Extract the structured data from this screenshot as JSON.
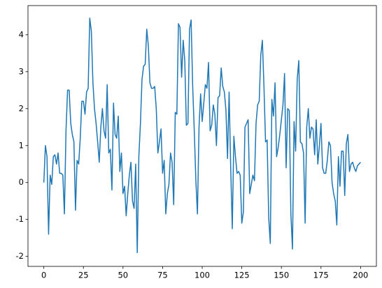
{
  "chart_data": {
    "type": "line",
    "x": [
      0,
      1,
      2,
      3,
      4,
      5,
      6,
      7,
      8,
      9,
      10,
      11,
      12,
      13,
      14,
      15,
      16,
      17,
      18,
      19,
      20,
      21,
      22,
      23,
      24,
      25,
      26,
      27,
      28,
      29,
      30,
      31,
      32,
      33,
      34,
      35,
      36,
      37,
      38,
      39,
      40,
      41,
      42,
      43,
      44,
      45,
      46,
      47,
      48,
      49,
      50,
      51,
      52,
      53,
      54,
      55,
      56,
      57,
      58,
      59,
      60,
      61,
      62,
      63,
      64,
      65,
      66,
      67,
      68,
      69,
      70,
      71,
      72,
      73,
      74,
      75,
      76,
      77,
      78,
      79,
      80,
      81,
      82,
      83,
      84,
      85,
      86,
      87,
      88,
      89,
      90,
      91,
      92,
      93,
      94,
      95,
      96,
      97,
      98,
      99,
      100,
      101,
      102,
      103,
      104,
      105,
      106,
      107,
      108,
      109,
      110,
      111,
      112,
      113,
      114,
      115,
      116,
      117,
      118,
      119,
      120,
      121,
      122,
      123,
      124,
      125,
      126,
      127,
      128,
      129,
      130,
      131,
      132,
      133,
      134,
      135,
      136,
      137,
      138,
      139,
      140,
      141,
      142,
      143,
      144,
      145,
      146,
      147,
      148,
      149,
      150,
      151,
      152,
      153,
      154,
      155,
      156,
      157,
      158,
      159,
      160,
      161,
      162,
      163,
      164,
      165,
      166,
      167,
      168,
      169,
      170,
      171,
      172,
      173,
      174,
      175,
      176,
      177,
      178,
      179,
      180,
      181,
      182,
      183,
      184,
      185,
      186,
      187,
      188,
      189,
      190,
      191,
      192,
      193,
      194,
      195,
      196,
      197,
      198,
      199,
      200
    ],
    "series": [
      {
        "color": "#1f77b4",
        "values": [
          0,
          1.0,
          0.7,
          -1.4,
          0.2,
          -0.05,
          0.7,
          0.75,
          0.5,
          0.8,
          0.25,
          0.25,
          0.2,
          -0.85,
          1.4,
          2.5,
          2.5,
          1.6,
          1.3,
          1.1,
          -0.75,
          0.6,
          0.5,
          1.2,
          2.2,
          2.2,
          1.85,
          2.45,
          2.55,
          4.45,
          4.1,
          2.7,
          2.0,
          1.6,
          1.1,
          0.55,
          1.5,
          2.0,
          1.4,
          1.2,
          2.65,
          0.8,
          0.9,
          -0.2,
          2.15,
          1.3,
          1.2,
          1.8,
          0.3,
          0.8,
          -0.3,
          -0.1,
          -0.9,
          -0.3,
          0.2,
          0.55,
          -0.5,
          -0.7,
          0.5,
          -1.9,
          0.7,
          1.6,
          2.8,
          3.15,
          3.2,
          4.15,
          3.7,
          2.7,
          2.55,
          2.55,
          2.6,
          2.0,
          0.8,
          1.1,
          1.45,
          0.25,
          0.6,
          -0.85,
          -0.3,
          -0.05,
          0.8,
          0.55,
          -0.6,
          1.9,
          1.85,
          4.3,
          4.2,
          2.85,
          3.85,
          3.3,
          1.55,
          1.6,
          4.15,
          4.4,
          2.6,
          1.4,
          0.05,
          -0.85,
          1.5,
          2.4,
          1.65,
          2.15,
          2.65,
          2.55,
          3.25,
          1.4,
          1.55,
          2.1,
          1.85,
          1.0,
          2.3,
          2.35,
          3.1,
          2.6,
          2.45,
          1.95,
          0.65,
          2.45,
          0.4,
          -1.25,
          1.25,
          0.7,
          0.25,
          0.3,
          0.2,
          -1.1,
          -0.8,
          1.5,
          1.6,
          1.7,
          -0.3,
          -0.05,
          0.2,
          0.05,
          1.6,
          2.1,
          2.2,
          3.45,
          3.85,
          2.6,
          1.1,
          1.15,
          -0.95,
          -1.65,
          2.25,
          1.8,
          2.7,
          0.7,
          0.95,
          1.3,
          1.7,
          2.1,
          2.95,
          0.4,
          2.0,
          1.95,
          -0.85,
          -1.8,
          1.65,
          0.85,
          2.8,
          3.3,
          1.1,
          1.05,
          0.8,
          -1.1,
          1.5,
          2.0,
          1.2,
          1.5,
          1.45,
          0.75,
          1.7,
          0.5,
          1.0,
          1.6,
          0.4,
          0.25,
          0.25,
          0.6,
          1.1,
          1.0,
          0.0,
          -0.3,
          -0.5,
          -1.15,
          0.7,
          -0.1,
          0.85,
          0.85,
          -0.35,
          1.05,
          1.3,
          0.3,
          0.5,
          0.55,
          0.4,
          0.3,
          0.45,
          0.5,
          0.55
        ]
      }
    ],
    "xlim": [
      -10,
      210
    ],
    "xticks": [
      0,
      25,
      50,
      75,
      100,
      125,
      150,
      175,
      200
    ],
    "ylim": [
      -2.27,
      4.79
    ],
    "yticks": [
      -2,
      -1,
      0,
      1,
      2,
      3,
      4
    ]
  }
}
